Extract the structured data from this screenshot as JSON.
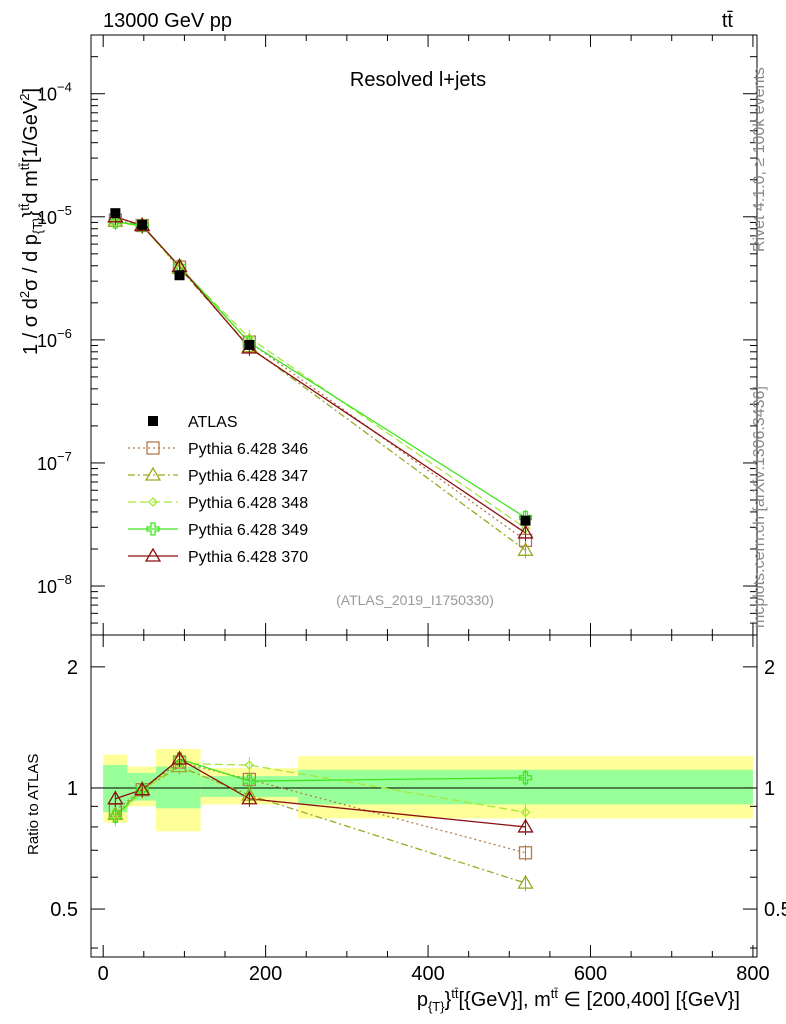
{
  "header": {
    "left_text": "13000 GeV pp",
    "right_text": "tt̄"
  },
  "side_labels": {
    "rivet": "Rivet 4.1.0, ≥ 100k events",
    "mcplots": "mcplots.cern.ch [arXiv:1306.3436]"
  },
  "colors": {
    "data": "#000000",
    "p346": "#b07e4e",
    "p347": "#9aaa1e",
    "p348": "#a6e63c",
    "p349": "#3ee61e",
    "p370": "#8b0f12",
    "band_inner": "#99ff99",
    "band_outer": "#ffff99",
    "analysis_label": "#999999"
  },
  "chart_data": [
    {
      "type": "line",
      "title": "Resolved l+jets",
      "analysis_label": "(ATLAS_2019_I1750330)",
      "ylabel_parts": {
        "a": "1 / σ d",
        "b": "2",
        "c": "σ /  d p",
        "d": "{T}",
        "e": "}",
        "f": "tt̄",
        "g": "d m",
        "h": "tt̄",
        "i": "[1/GeV",
        "j": "2",
        "k": "]"
      },
      "xlabel_parts": {
        "a": "p",
        "b": "{T}",
        "c": "}",
        "d": "tt̄",
        "e": "[{GeV}], m",
        "f": "tt̄",
        "g": " ∈ [200,400] [{GeV}]"
      },
      "yscale": "log",
      "xlim": [
        -15,
        805
      ],
      "ylim": [
        4e-09,
        0.0003
      ],
      "y_ticks": [
        {
          "value": 1e-08,
          "base": "10",
          "exp": "−8"
        },
        {
          "value": 1e-07,
          "base": "10",
          "exp": "−7"
        },
        {
          "value": 1e-06,
          "base": "10",
          "exp": "−6"
        },
        {
          "value": 1e-05,
          "base": "10",
          "exp": "−5"
        },
        {
          "value": 0.0001,
          "base": "10",
          "exp": "−4"
        }
      ],
      "legend_position": "left-middle",
      "bins": [
        [
          0,
          30
        ],
        [
          30,
          65
        ],
        [
          65,
          120
        ],
        [
          120,
          240
        ],
        [
          240,
          800
        ]
      ],
      "data": {
        "name": "ATLAS",
        "x": [
          15,
          48,
          94,
          180,
          520
        ],
        "y": [
          1.07e-05,
          8.6e-06,
          3.35e-06,
          9.1e-07,
          3.4e-08
        ]
      },
      "series": [
        {
          "name": "Pythia 6.428 346",
          "key": "p346",
          "marker": "square",
          "dash": "2,3",
          "x": [
            15,
            48,
            94,
            180,
            520
          ],
          "y": [
            9.4e-06,
            8.5e-06,
            3.9e-06,
            9.6e-07,
            2.35e-08
          ]
        },
        {
          "name": "Pythia 6.428 347",
          "key": "p347",
          "marker": "triangle",
          "dash": "7,3,2,3",
          "x": [
            15,
            48,
            94,
            180,
            520
          ],
          "y": [
            9.2e-06,
            8.5e-06,
            3.8e-06,
            8.8e-07,
            1.95e-08
          ]
        },
        {
          "name": "Pythia 6.428 348",
          "key": "p348",
          "marker": "diamond",
          "dash": "8,4",
          "x": [
            15,
            48,
            94,
            180,
            520
          ],
          "y": [
            9e-06,
            8.4e-06,
            3.85e-06,
            1.04e-06,
            2.95e-08
          ]
        },
        {
          "name": "Pythia 6.428 349",
          "key": "p349",
          "marker": "cross",
          "dash": "",
          "x": [
            15,
            48,
            94,
            180,
            520
          ],
          "y": [
            9.1e-06,
            8.5e-06,
            3.95e-06,
            9.5e-07,
            3.6e-08
          ]
        },
        {
          "name": "Pythia 6.428 370",
          "key": "p370",
          "marker": "triangle",
          "dash": "",
          "x": [
            15,
            48,
            94,
            180,
            520
          ],
          "y": [
            1e-05,
            8.5e-06,
            3.95e-06,
            8.6e-07,
            2.7e-08
          ]
        }
      ]
    },
    {
      "type": "line",
      "title": "",
      "ylabel": "Ratio to ATLAS",
      "yscale": "log",
      "ylim": [
        0.38,
        2.4
      ],
      "y_ticks": [
        {
          "value": 0.5,
          "label": "0.5"
        },
        {
          "value": 1,
          "label": "1"
        },
        {
          "value": 2,
          "label": "2"
        }
      ],
      "x_ticks": [
        {
          "value": 0,
          "label": "0"
        },
        {
          "value": 200,
          "label": "200"
        },
        {
          "value": 400,
          "label": "400"
        },
        {
          "value": 600,
          "label": "600"
        },
        {
          "value": 800,
          "label": "800"
        }
      ],
      "bands": [
        {
          "x0": 0,
          "x1": 30,
          "inner": [
            0.87,
            1.14
          ],
          "outer": [
            0.82,
            1.21
          ]
        },
        {
          "x0": 30,
          "x1": 65,
          "inner": [
            0.93,
            1.09
          ],
          "outer": [
            0.9,
            1.13
          ]
        },
        {
          "x0": 65,
          "x1": 120,
          "inner": [
            0.89,
            1.13
          ],
          "outer": [
            0.78,
            1.25
          ]
        },
        {
          "x0": 120,
          "x1": 240,
          "inner": [
            0.95,
            1.07
          ],
          "outer": [
            0.91,
            1.12
          ]
        },
        {
          "x0": 240,
          "x1": 800,
          "inner": [
            0.91,
            1.11
          ],
          "outer": [
            0.84,
            1.2
          ]
        }
      ],
      "series": [
        {
          "name": "Pythia 6.428 346",
          "key": "p346",
          "marker": "square",
          "dash": "2,3",
          "x": [
            15,
            48,
            94,
            180,
            520
          ],
          "y": [
            0.88,
            0.99,
            1.16,
            1.05,
            0.69
          ]
        },
        {
          "name": "Pythia 6.428 347",
          "key": "p347",
          "marker": "triangle",
          "dash": "7,3,2,3",
          "x": [
            15,
            48,
            94,
            180,
            520
          ],
          "y": [
            0.86,
            0.99,
            1.13,
            0.96,
            0.58
          ]
        },
        {
          "name": "Pythia 6.428 348",
          "key": "p348",
          "marker": "diamond",
          "dash": "8,4",
          "x": [
            15,
            48,
            94,
            180,
            520
          ],
          "y": [
            0.84,
            0.98,
            1.15,
            1.14,
            0.87
          ]
        },
        {
          "name": "Pythia 6.428 349",
          "key": "p349",
          "marker": "cross",
          "dash": "",
          "x": [
            15,
            48,
            94,
            180,
            520
          ],
          "y": [
            0.85,
            0.99,
            1.18,
            1.04,
            1.06
          ]
        },
        {
          "name": "Pythia 6.428 370",
          "key": "p370",
          "marker": "triangle",
          "dash": "",
          "x": [
            15,
            48,
            94,
            180,
            520
          ],
          "y": [
            0.94,
            0.99,
            1.18,
            0.94,
            0.8
          ]
        }
      ]
    }
  ]
}
